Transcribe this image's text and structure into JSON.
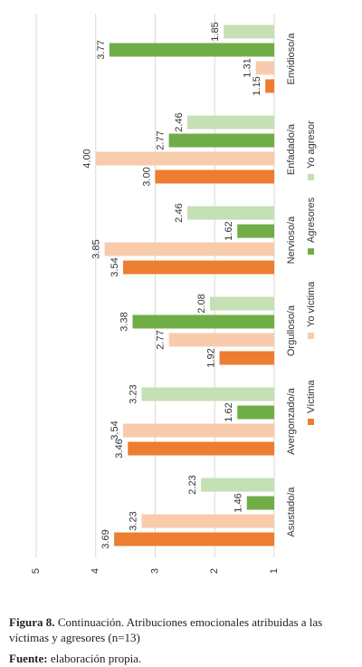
{
  "chart_data": {
    "type": "bar",
    "categories": [
      "Asustado/a",
      "Avergonzado/a",
      "Orgulloso/a",
      "Nervioso/a",
      "Enfadado/a",
      "Envidioso/a"
    ],
    "series": [
      {
        "name": "Víctima",
        "color": "#ed7d31",
        "values": [
          3.69,
          3.46,
          1.92,
          3.54,
          3.0,
          1.15
        ],
        "value_labels": [
          "3.69",
          "3.46",
          "1.92",
          "3.54",
          "3.00",
          "1.15"
        ]
      },
      {
        "name": "Yo víctima",
        "color": "#f8cbad",
        "values": [
          3.23,
          3.54,
          2.77,
          3.85,
          4.0,
          1.31
        ],
        "value_labels": [
          "3.23",
          "3.54",
          "2.77",
          "3.85",
          "4.00",
          "1.31"
        ]
      },
      {
        "name": "Agresores",
        "color": "#70ad47",
        "values": [
          1.46,
          1.62,
          3.38,
          1.62,
          2.77,
          3.77
        ],
        "value_labels": [
          "1.46",
          "1.62",
          "3.38",
          "1.62",
          "2.77",
          "3.77"
        ]
      },
      {
        "name": "Yo agresor",
        "color": "#c5e0b4",
        "values": [
          2.23,
          3.23,
          2.08,
          2.46,
          2.46,
          1.85
        ],
        "value_labels": [
          "2.23",
          "3.23",
          "2.08",
          "2.46",
          "2.46",
          "1.85"
        ]
      }
    ],
    "ylim": [
      1,
      5
    ],
    "yticks": [
      1,
      2,
      3,
      4,
      5
    ],
    "grid": true,
    "legend": "right"
  },
  "caption": {
    "label": "Figura 8.",
    "text": "Continuación. Atribuciones emocionales atribuidas a las víctimas y agresores (n=13)",
    "source_label": "Fuente:",
    "source": "elaboración propia."
  }
}
